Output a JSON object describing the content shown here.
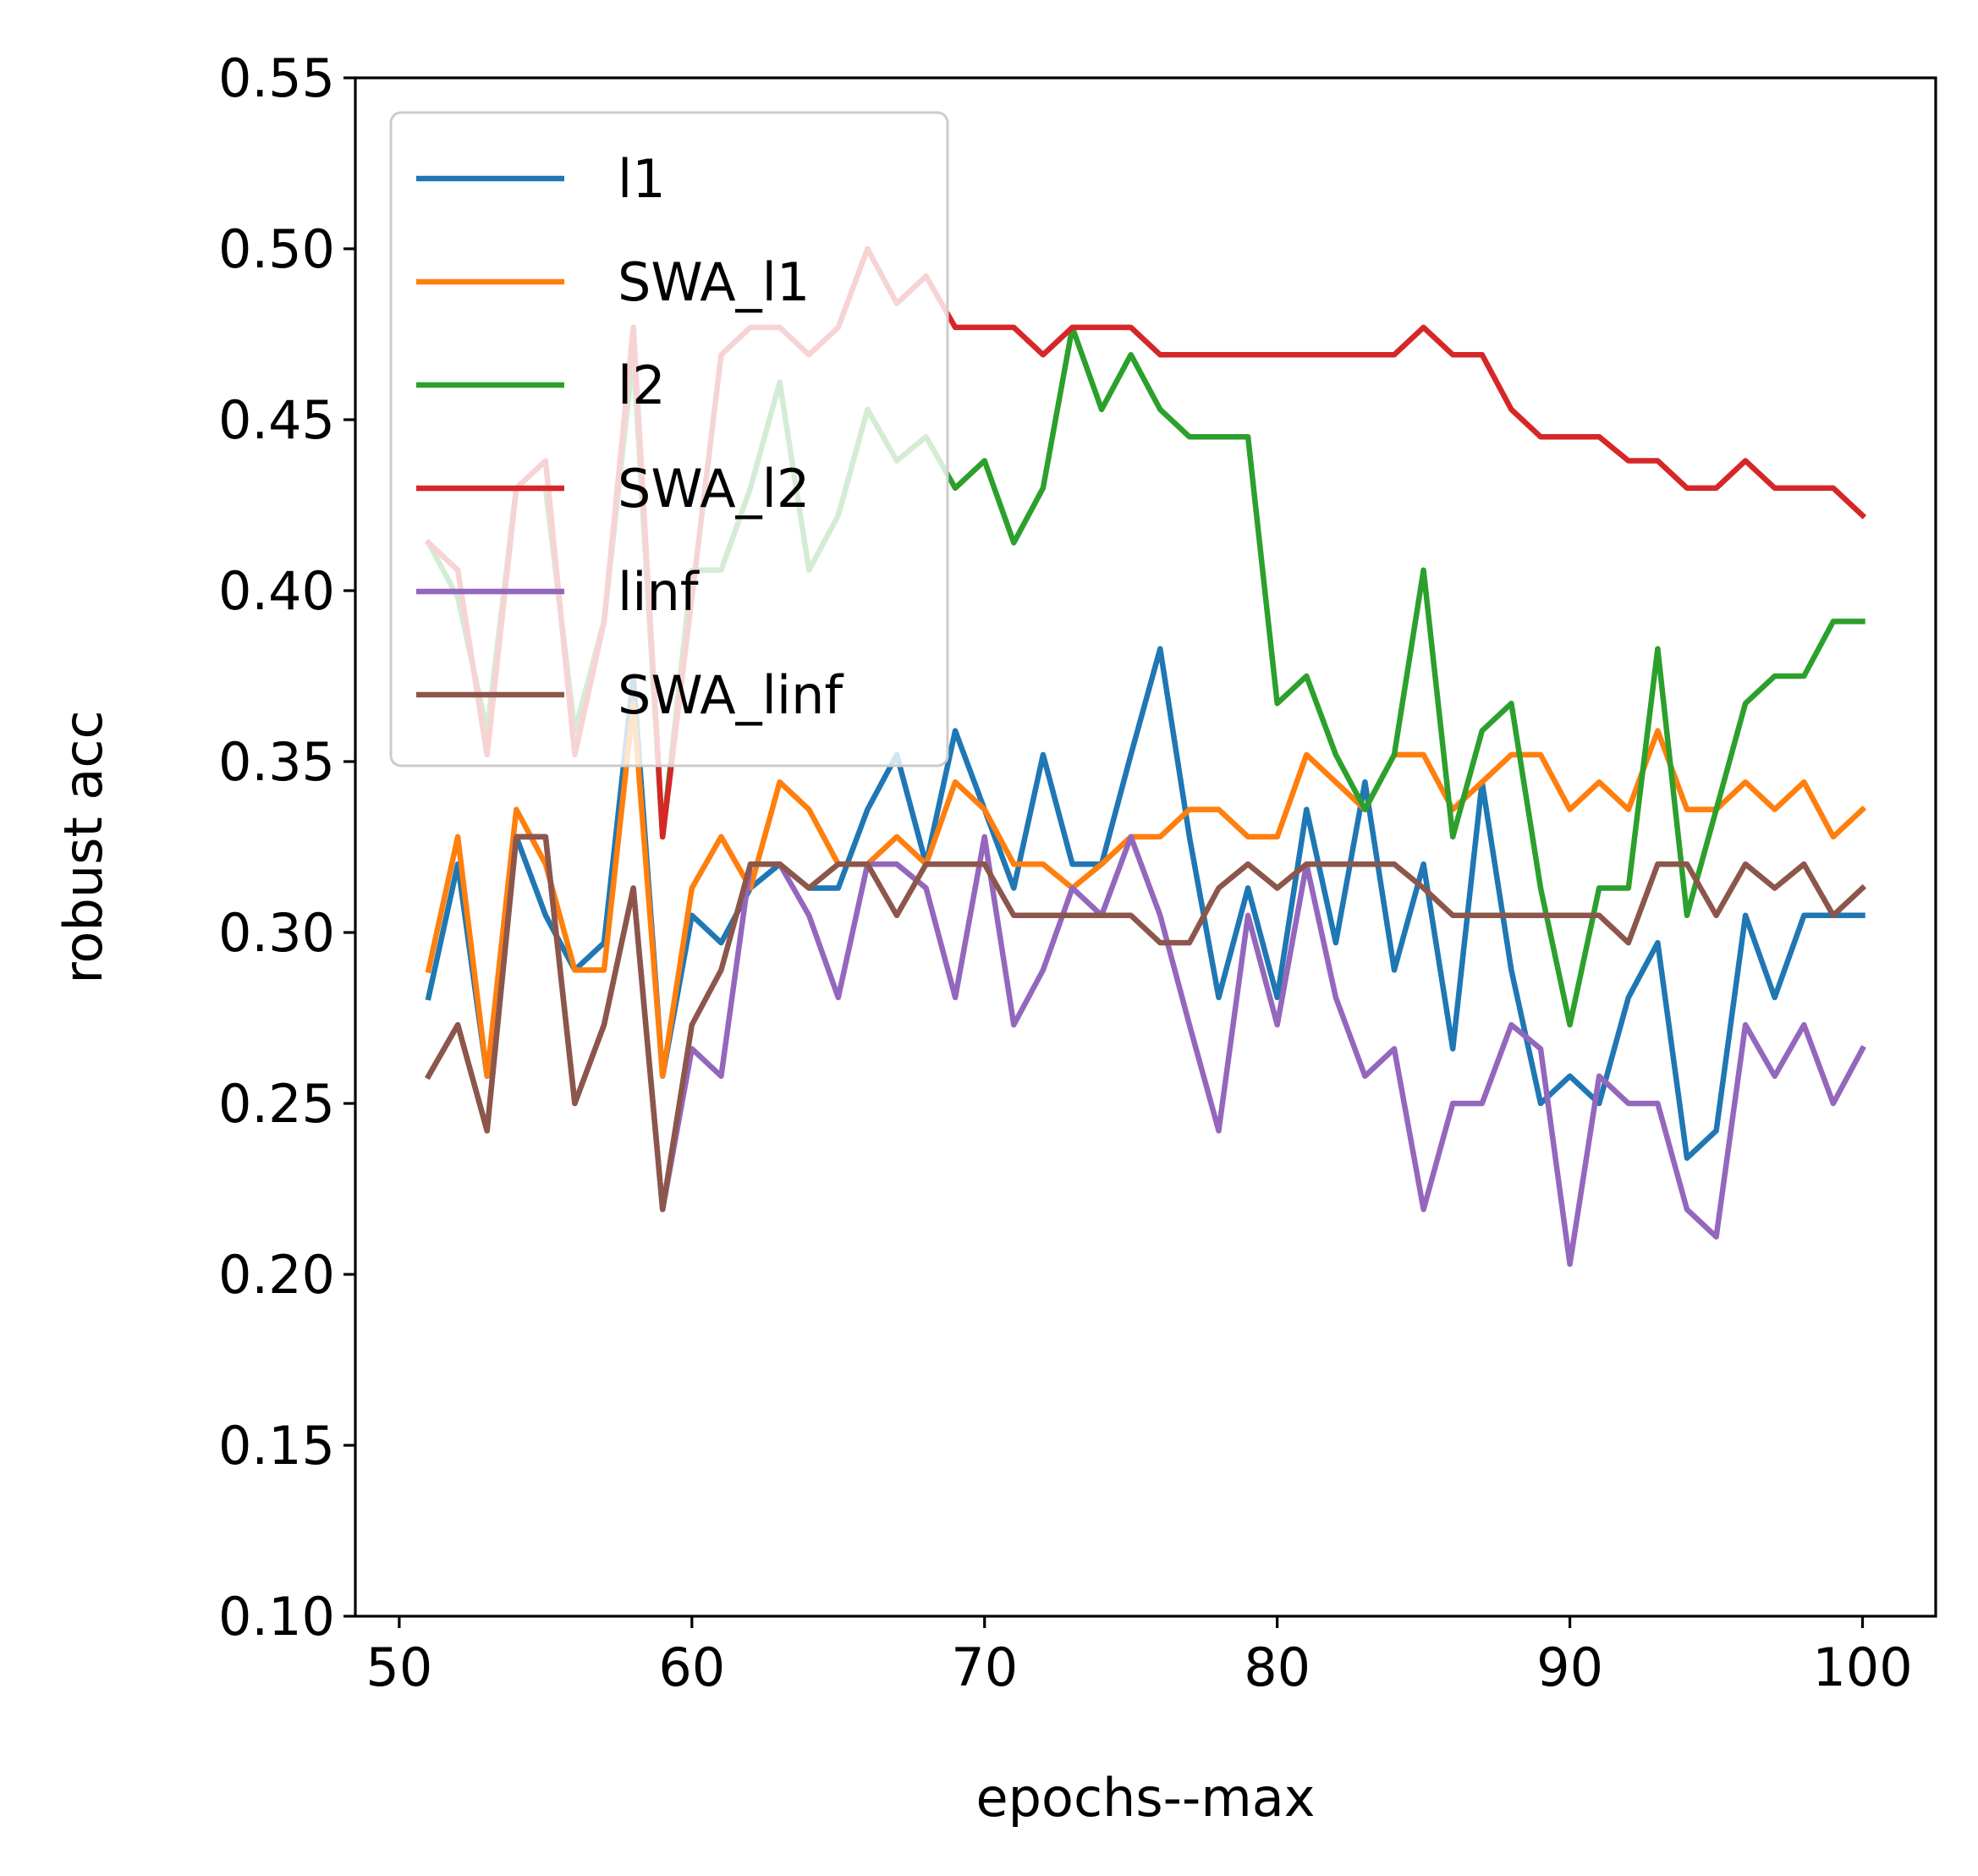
{
  "chart_data": {
    "type": "line",
    "xlabel": "epochs--max",
    "ylabel": "robust acc",
    "xlim": [
      48.5,
      102.5
    ],
    "ylim": [
      0.1,
      0.55
    ],
    "xticks": [
      50,
      60,
      70,
      80,
      90,
      100
    ],
    "yticks": [
      0.1,
      0.15,
      0.2,
      0.25,
      0.3,
      0.35,
      0.4,
      0.45,
      0.5,
      0.55
    ],
    "ytick_labels": [
      "0.10",
      "0.15",
      "0.20",
      "0.25",
      "0.30",
      "0.35",
      "0.40",
      "0.45",
      "0.50",
      "0.55"
    ],
    "grid": false,
    "legend": "upper-left",
    "x": [
      51,
      52,
      53,
      54,
      55,
      56,
      57,
      58,
      59,
      60,
      61,
      62,
      63,
      64,
      65,
      66,
      67,
      68,
      69,
      70,
      71,
      72,
      73,
      74,
      75,
      76,
      77,
      78,
      79,
      80,
      81,
      82,
      83,
      84,
      85,
      86,
      87,
      88,
      89,
      90,
      91,
      92,
      93,
      94,
      95,
      96,
      97,
      98,
      99,
      100
    ],
    "series": [
      {
        "name": "l1",
        "color": "#1f77b4",
        "values": [
          0.281,
          0.32,
          0.258,
          0.328,
          0.305,
          0.289,
          0.297,
          0.375,
          0.258,
          0.305,
          0.297,
          0.313,
          0.32,
          0.313,
          0.313,
          0.336,
          0.352,
          0.32,
          0.359,
          0.336,
          0.313,
          0.352,
          0.32,
          0.32,
          0.352,
          0.383,
          0.328,
          0.281,
          0.313,
          0.281,
          0.336,
          0.297,
          0.344,
          0.289,
          0.32,
          0.266,
          0.344,
          0.289,
          0.25,
          0.258,
          0.25,
          0.281,
          0.297,
          0.234,
          0.242,
          0.305,
          0.281,
          0.305,
          0.305,
          0.305
        ]
      },
      {
        "name": "SWA_l1",
        "color": "#ff7f0e",
        "values": [
          0.289,
          0.328,
          0.258,
          0.336,
          0.32,
          0.289,
          0.289,
          0.367,
          0.258,
          0.313,
          0.328,
          0.313,
          0.344,
          0.336,
          0.32,
          0.32,
          0.328,
          0.32,
          0.344,
          0.336,
          0.32,
          0.32,
          0.313,
          0.32,
          0.328,
          0.328,
          0.336,
          0.336,
          0.328,
          0.328,
          0.352,
          0.344,
          0.336,
          0.352,
          0.352,
          0.336,
          0.344,
          0.352,
          0.352,
          0.336,
          0.344,
          0.336,
          0.359,
          0.336,
          0.336,
          0.344,
          0.336,
          0.344,
          0.328,
          0.336
        ]
      },
      {
        "name": "l2",
        "color": "#2ca02c",
        "values": [
          0.414,
          0.398,
          0.359,
          0.43,
          0.43,
          0.359,
          0.391,
          0.469,
          0.328,
          0.406,
          0.406,
          0.43,
          0.461,
          0.406,
          0.422,
          0.453,
          0.438,
          0.445,
          0.43,
          0.438,
          0.414,
          0.43,
          0.477,
          0.453,
          0.469,
          0.453,
          0.445,
          0.445,
          0.445,
          0.367,
          0.375,
          0.352,
          0.336,
          0.352,
          0.406,
          0.328,
          0.359,
          0.367,
          0.313,
          0.273,
          0.313,
          0.313,
          0.383,
          0.305,
          0.336,
          0.367,
          0.375,
          0.375,
          0.391,
          0.391
        ]
      },
      {
        "name": "SWA_l2",
        "color": "#d62728",
        "values": [
          0.414,
          0.406,
          0.352,
          0.43,
          0.438,
          0.352,
          0.391,
          0.477,
          0.328,
          0.398,
          0.469,
          0.477,
          0.477,
          0.469,
          0.477,
          0.5,
          0.484,
          0.492,
          0.477,
          0.477,
          0.477,
          0.469,
          0.477,
          0.477,
          0.477,
          0.469,
          0.469,
          0.469,
          0.469,
          0.469,
          0.469,
          0.469,
          0.469,
          0.469,
          0.477,
          0.469,
          0.469,
          0.453,
          0.445,
          0.445,
          0.445,
          0.438,
          0.438,
          0.43,
          0.43,
          0.438,
          0.43,
          0.43,
          0.43,
          0.422
        ]
      },
      {
        "name": "linf",
        "color": "#9467bd",
        "values": [
          0.258,
          0.273,
          0.242,
          0.328,
          0.328,
          0.25,
          0.273,
          0.313,
          0.219,
          0.266,
          0.258,
          0.32,
          0.32,
          0.305,
          0.281,
          0.32,
          0.32,
          0.313,
          0.281,
          0.328,
          0.273,
          0.289,
          0.313,
          0.305,
          0.328,
          0.305,
          0.273,
          0.242,
          0.305,
          0.273,
          0.32,
          0.281,
          0.258,
          0.266,
          0.219,
          0.25,
          0.25,
          0.273,
          0.266,
          0.203,
          0.258,
          0.25,
          0.25,
          0.219,
          0.211,
          0.273,
          0.258,
          0.273,
          0.25,
          0.266
        ]
      },
      {
        "name": "SWA_linf",
        "color": "#8c564b",
        "values": [
          0.258,
          0.273,
          0.242,
          0.328,
          0.328,
          0.25,
          0.273,
          0.313,
          0.219,
          0.273,
          0.289,
          0.32,
          0.32,
          0.313,
          0.32,
          0.32,
          0.305,
          0.32,
          0.32,
          0.32,
          0.305,
          0.305,
          0.305,
          0.305,
          0.305,
          0.297,
          0.297,
          0.313,
          0.32,
          0.313,
          0.32,
          0.32,
          0.32,
          0.32,
          0.313,
          0.305,
          0.305,
          0.305,
          0.305,
          0.305,
          0.305,
          0.297,
          0.32,
          0.32,
          0.305,
          0.32,
          0.313,
          0.32,
          0.305,
          0.313
        ]
      }
    ]
  }
}
